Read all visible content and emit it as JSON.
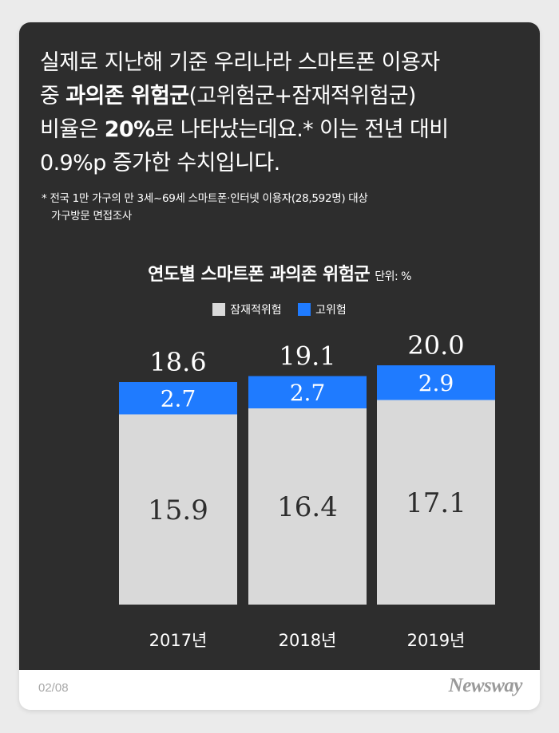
{
  "headline": {
    "line1": "실제로 지난해 기준 우리나라 스마트폰 이용자",
    "line2_pre": "중 ",
    "line2_bold": "과의존 위험군",
    "line2_post": "(고위험군+잠재적위험군)",
    "line3_pre": "비율은 ",
    "line3_bold": "20%",
    "line3_post": "로 나타났는데요.* 이는 전년 대비",
    "line4": "0.9%p 증가한 수치입니다."
  },
  "footnote": {
    "line1": "* 전국 1만 가구의 만 3세~69세 스마트폰·인터넷 이용자(28,592명) 대상",
    "line2": "가구방문 면접조사"
  },
  "colors": {
    "panel": "#2d2d2d",
    "potential": "#d9d9d9",
    "high": "#1f7bff"
  },
  "chart_data": {
    "type": "bar",
    "stacked": true,
    "title": "연도별 스마트폰 과의존 위험군",
    "unit": "단위: %",
    "categories": [
      "2017년",
      "2018년",
      "2019년"
    ],
    "totals": [
      "18.6",
      "19.1",
      "20.0"
    ],
    "series": [
      {
        "name": "잠재적위험",
        "values": [
          15.9,
          16.4,
          17.1
        ],
        "labels": [
          "15.9",
          "16.4",
          "17.1"
        ]
      },
      {
        "name": "고위험",
        "values": [
          2.7,
          2.7,
          2.9
        ],
        "labels": [
          "2.7",
          "2.7",
          "2.9"
        ]
      }
    ],
    "ylim": [
      0,
      20
    ],
    "legend_position": "top-center",
    "grid": false
  },
  "footer": {
    "page": "02/08",
    "brand": "Newsway"
  }
}
